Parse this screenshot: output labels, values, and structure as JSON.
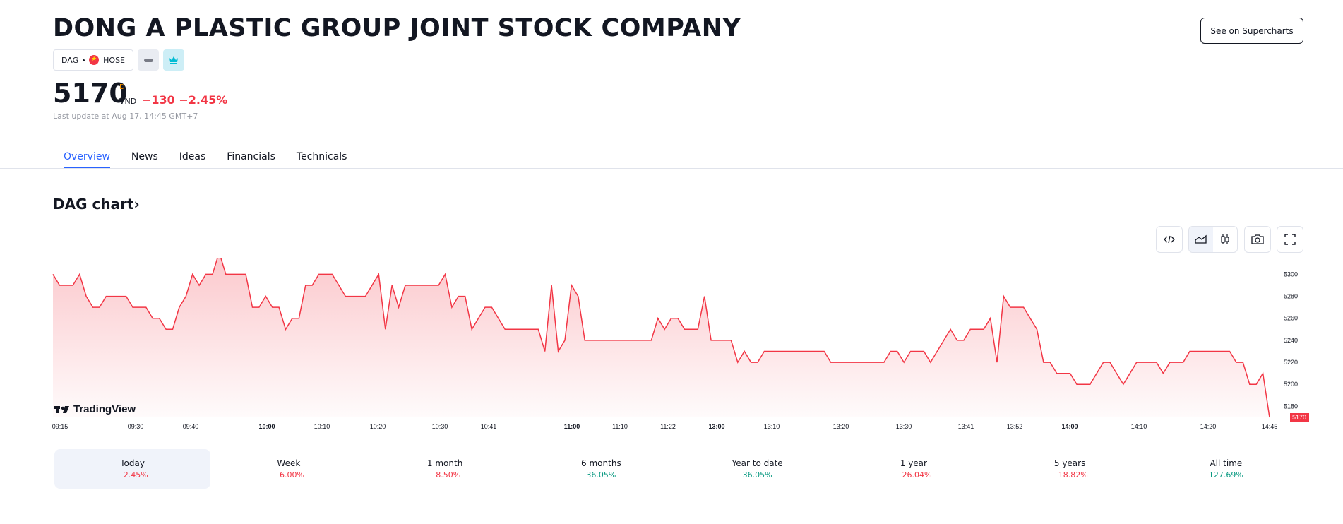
{
  "header": {
    "title": "DONG A PLASTIC GROUP JOINT STOCK COMPANY",
    "supercharts_label": "See on Supercharts",
    "symbol": "DAG",
    "exchange": "HOSE"
  },
  "quote": {
    "price": "5170",
    "price_flag": "D",
    "currency": "VND",
    "change": "−130 −2.45%",
    "last_update": "Last update at Aug 17, 14:45 GMT+7"
  },
  "tabs": [
    {
      "label": "Overview",
      "active": true
    },
    {
      "label": "News"
    },
    {
      "label": "Ideas"
    },
    {
      "label": "Financials"
    },
    {
      "label": "Technicals"
    }
  ],
  "chart_section": {
    "heading": "DAG chart",
    "watermark": "TradingView",
    "tools": [
      "embed-code-icon",
      "area-chart-icon",
      "candles-icon",
      "camera-icon",
      "fullscreen-icon"
    ]
  },
  "chart_data": {
    "type": "area",
    "x_ticks": [
      {
        "label": "09:15",
        "bold": false
      },
      {
        "label": "09:30",
        "bold": false
      },
      {
        "label": "09:40",
        "bold": false
      },
      {
        "label": "10:00",
        "bold": true
      },
      {
        "label": "10:10",
        "bold": false
      },
      {
        "label": "10:20",
        "bold": false
      },
      {
        "label": "10:30",
        "bold": false
      },
      {
        "label": "10:41",
        "bold": false
      },
      {
        "label": "11:00",
        "bold": true
      },
      {
        "label": "11:10",
        "bold": false
      },
      {
        "label": "11:22",
        "bold": false
      },
      {
        "label": "13:00",
        "bold": true
      },
      {
        "label": "13:10",
        "bold": false
      },
      {
        "label": "13:20",
        "bold": false
      },
      {
        "label": "13:30",
        "bold": false
      },
      {
        "label": "13:41",
        "bold": false
      },
      {
        "label": "13:52",
        "bold": false
      },
      {
        "label": "14:00",
        "bold": true
      },
      {
        "label": "14:10",
        "bold": false
      },
      {
        "label": "14:20",
        "bold": false
      },
      {
        "label": "14:45",
        "bold": false
      }
    ],
    "y_ticks": [
      5300,
      5280,
      5260,
      5240,
      5220,
      5200,
      5180
    ],
    "ylim": [
      5170,
      5315
    ],
    "last_value": "5170",
    "values": [
      5300,
      5290,
      5290,
      5290,
      5300,
      5280,
      5270,
      5270,
      5280,
      5280,
      5280,
      5280,
      5270,
      5270,
      5270,
      5260,
      5260,
      5250,
      5250,
      5270,
      5280,
      5300,
      5290,
      5300,
      5300,
      5320,
      5300,
      5300,
      5300,
      5300,
      5270,
      5270,
      5280,
      5270,
      5270,
      5250,
      5260,
      5260,
      5290,
      5290,
      5300,
      5300,
      5300,
      5290,
      5280,
      5280,
      5280,
      5280,
      5290,
      5300,
      5250,
      5290,
      5270,
      5290,
      5290,
      5290,
      5290,
      5290,
      5290,
      5300,
      5270,
      5280,
      5280,
      5250,
      5260,
      5270,
      5270,
      5260,
      5250,
      5250,
      5250,
      5250,
      5250,
      5250,
      5230,
      5290,
      5230,
      5240,
      5290,
      5280,
      5240,
      5240,
      5240,
      5240,
      5240,
      5240,
      5240,
      5240,
      5240,
      5240,
      5240,
      5260,
      5250,
      5260,
      5260,
      5250,
      5250,
      5250,
      5280,
      5240,
      5240,
      5240,
      5240,
      5220,
      5230,
      5220,
      5220,
      5230,
      5230,
      5230,
      5230,
      5230,
      5230,
      5230,
      5230,
      5230,
      5230,
      5220,
      5220,
      5220,
      5220,
      5220,
      5220,
      5220,
      5220,
      5220,
      5230,
      5230,
      5220,
      5230,
      5230,
      5230,
      5220,
      5230,
      5240,
      5250,
      5240,
      5240,
      5250,
      5250,
      5250,
      5260,
      5220,
      5280,
      5270,
      5270,
      5270,
      5260,
      5250,
      5220,
      5220,
      5210,
      5210,
      5210,
      5200,
      5200,
      5200,
      5210,
      5220,
      5220,
      5210,
      5200,
      5210,
      5220,
      5220,
      5220,
      5220,
      5210,
      5220,
      5220,
      5220,
      5230,
      5230,
      5230,
      5230,
      5230,
      5230,
      5230,
      5220,
      5220,
      5200,
      5200,
      5210,
      5170
    ],
    "line_color": "#f23645",
    "fill_color": "#f23645",
    "grid": false,
    "axis_position": "right"
  },
  "periods": [
    {
      "label": "Today",
      "value": "−2.45%",
      "sign": "neg",
      "active": true
    },
    {
      "label": "Week",
      "value": "−6.00%",
      "sign": "neg"
    },
    {
      "label": "1 month",
      "value": "−8.50%",
      "sign": "neg"
    },
    {
      "label": "6 months",
      "value": "36.05%",
      "sign": "pos"
    },
    {
      "label": "Year to date",
      "value": "36.05%",
      "sign": "pos"
    },
    {
      "label": "1 year",
      "value": "−26.04%",
      "sign": "neg"
    },
    {
      "label": "5 years",
      "value": "−18.82%",
      "sign": "neg"
    },
    {
      "label": "All time",
      "value": "127.69%",
      "sign": "pos"
    }
  ]
}
